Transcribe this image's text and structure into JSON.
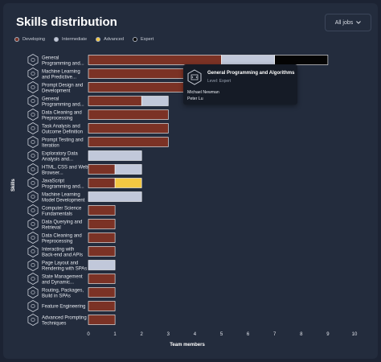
{
  "header": {
    "title": "Skills distribution",
    "filter_label": "All jobs"
  },
  "legend": [
    {
      "label": "Developing",
      "color": "#7b3225"
    },
    {
      "label": "Intermediate",
      "color": "#c1c8da"
    },
    {
      "label": "Advanced",
      "color": "#f4c842"
    },
    {
      "label": "Expert",
      "color": "#050505"
    }
  ],
  "tooltip": {
    "title": "General Programming and Algorithms",
    "level": "Level: Expert",
    "people": [
      "Michael Newman",
      "Peter Lu"
    ]
  },
  "chart_data": {
    "type": "bar",
    "orientation": "horizontal",
    "stacked": true,
    "xlabel": "Team members",
    "ylabel": "Skills",
    "xlim": [
      0,
      10
    ],
    "xticks": [
      0,
      1,
      2,
      3,
      4,
      5,
      6,
      7,
      8,
      9,
      10
    ],
    "categories": [
      [
        "General",
        "Programming and..."
      ],
      [
        "Machine Learning",
        "and Predictive..."
      ],
      [
        "Prompt Design and",
        "Development"
      ],
      [
        "General",
        "Programming and..."
      ],
      [
        "Data Cleaning and",
        "Preprocessing"
      ],
      [
        "Task Analysis and",
        "Outcome Definition"
      ],
      [
        "Prompt Testing and",
        "Iteration"
      ],
      [
        "Exploratory Data",
        "Analysis and..."
      ],
      [
        "HTML, CSS and Web",
        "Browser..."
      ],
      [
        "JavaScript",
        "Programming and..."
      ],
      [
        "Machine Learning",
        "Model Development"
      ],
      [
        "Computer Science",
        "Fundamentals"
      ],
      [
        "Data Querying and",
        "Retrieval"
      ],
      [
        "Data Cleaning and",
        "Preprocessing"
      ],
      [
        "Interacting with",
        "Back-end and APIs"
      ],
      [
        "Page Layout and",
        "Rendering with SPAs"
      ],
      [
        "State Management",
        "and Dynamic..."
      ],
      [
        "Routing, Packages,",
        "Build in SPAs"
      ],
      [
        "Feature Engineering"
      ],
      [
        "Advanced Prompting",
        "Techniques"
      ]
    ],
    "series": [
      {
        "name": "Developing",
        "values": [
          5,
          5,
          5,
          2,
          3,
          3,
          3,
          0,
          1,
          1,
          0,
          1,
          1,
          1,
          1,
          0,
          1,
          1,
          1,
          1
        ]
      },
      {
        "name": "Intermediate",
        "values": [
          2,
          0,
          0,
          1,
          0,
          0,
          0,
          2,
          1,
          0,
          2,
          0,
          0,
          0,
          0,
          1,
          0,
          0,
          0,
          0
        ]
      },
      {
        "name": "Advanced",
        "values": [
          0,
          0,
          0,
          0,
          0,
          0,
          0,
          0,
          0,
          1,
          0,
          0,
          0,
          0,
          0,
          0,
          0,
          0,
          0,
          0
        ]
      },
      {
        "name": "Expert",
        "values": [
          2,
          0,
          0,
          0,
          0,
          0,
          0,
          0,
          0,
          0,
          0,
          0,
          0,
          0,
          0,
          0,
          0,
          0,
          0,
          0
        ]
      }
    ]
  }
}
